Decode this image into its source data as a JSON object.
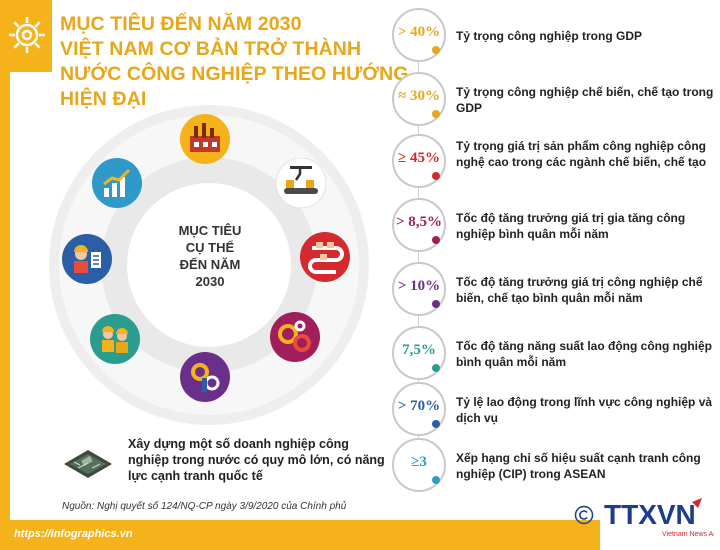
{
  "header": {
    "title_lines": [
      "MỤC TIÊU ĐẾN NĂM 2030",
      "VIỆT NAM CƠ BẢN TRỞ THÀNH",
      "NƯỚC CÔNG NGHIỆP THEO HƯỚNG",
      "HIỆN ĐẠI"
    ]
  },
  "center": {
    "lines": [
      "MỤC TIÊU",
      "CỤ THỂ",
      "ĐẾN NĂM",
      "2030"
    ]
  },
  "goals_icons": [
    "factory-icon",
    "conveyor-robot-icon",
    "production-line-icon",
    "gears-icon",
    "tech-worker-icon",
    "engineers-icon",
    "worker-checklist-icon",
    "growth-bars-icon"
  ],
  "build": {
    "text": "Xây dựng một số doanh nghiệp công nghiệp trong nước có quy mô lớn, có năng lực cạnh tranh quốc tế"
  },
  "targets": [
    {
      "value": "> 40%",
      "text": "Tỷ trọng công nghiệp trong GDP",
      "color": "#e8a619"
    },
    {
      "value": "≈ 30%",
      "text": "Tỷ trọng công nghiệp chế biến, chế tạo trong GDP",
      "color": "#e8a619"
    },
    {
      "value": "≥ 45%",
      "text": "Tỷ trọng giá trị sản phẩm công nghiệp công nghệ cao trong các ngành chế biến, chế tạo",
      "color": "#d42a2f"
    },
    {
      "value": "> 8,5%",
      "text": "Tốc độ tăng trưởng giá trị gia tăng công nghiệp bình quân mỗi năm",
      "color": "#a01f5b"
    },
    {
      "value": "> 10%",
      "text": "Tốc độ tăng trưởng giá trị công nghiệp chế biến, chế tạo bình quân mỗi năm",
      "color": "#6a2f8a"
    },
    {
      "value": "7,5%",
      "text": "Tốc độ tăng năng suất lao động công nghiệp bình quân mỗi năm",
      "color": "#2a9d8f"
    },
    {
      "value": "> 70%",
      "text": "Tỷ lệ lao động trong lĩnh vực công nghiệp và dịch vụ",
      "color": "#2a5fa8"
    },
    {
      "value": "≥3",
      "text": "Xếp hạng chỉ số hiệu suất cạnh tranh công nghiệp (CIP) trong ASEAN",
      "color": "#2f9ac9"
    }
  ],
  "source": "Nguồn: Nghị quyết số 124/NQ-CP ngày 3/9/2020 của Chính phủ",
  "footer_url": "https://infographics.vn",
  "logo": {
    "name": "TTXVN",
    "subtitle": "Vietnam News Agency"
  }
}
